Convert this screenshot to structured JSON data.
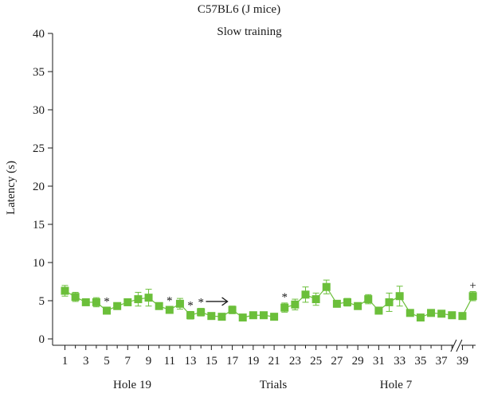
{
  "chart_data": {
    "type": "line",
    "title": "C57BL6 (J mice)",
    "subtitle": "Slow training",
    "ylabel": "Latency (s)",
    "xlabel": "Trials",
    "ylim": [
      0,
      40
    ],
    "yticks": [
      0,
      5,
      10,
      15,
      20,
      25,
      30,
      35,
      40
    ],
    "xtick_labels": [
      "1",
      "3",
      "5",
      "7",
      "9",
      "11",
      "13",
      "15",
      "17",
      "19",
      "21",
      "23",
      "25",
      "27",
      "29",
      "31",
      "33",
      "35",
      "37",
      "39"
    ],
    "group_labels": [
      "Hole 19",
      "Hole 7"
    ],
    "axis_break_between": [
      38,
      39
    ],
    "marker_color": "#6bbf3a",
    "segments": [
      {
        "x": [
          1,
          2,
          3,
          4,
          5,
          6,
          7,
          8,
          9,
          10,
          11,
          12,
          13,
          14,
          15,
          16,
          17,
          18,
          19,
          20,
          21
        ],
        "y": [
          6.3,
          5.5,
          4.8,
          4.8,
          3.7,
          4.3,
          4.8,
          5.2,
          5.4,
          4.3,
          3.8,
          4.6,
          3.1,
          3.5,
          3.0,
          2.9,
          3.8,
          2.8,
          3.1,
          3.1,
          2.9
        ],
        "err": [
          0.7,
          0.6,
          0.3,
          0.6,
          0.4,
          0.3,
          0.4,
          0.9,
          1.1,
          0.4,
          0.4,
          0.7,
          0.5,
          0.5,
          0.2,
          0.2,
          0.5,
          0.3,
          0.2,
          0.2,
          0.2
        ]
      },
      {
        "x": [
          22,
          23,
          24,
          25,
          26,
          27,
          28,
          29,
          30,
          31,
          32,
          33,
          34,
          35,
          36,
          37,
          38
        ],
        "y": [
          4.1,
          4.5,
          5.8,
          5.2,
          6.8,
          4.6,
          4.8,
          4.3,
          5.2,
          3.7,
          4.8,
          5.6,
          3.4,
          2.8,
          3.4,
          3.3,
          3.1
        ],
        "err": [
          0.6,
          0.7,
          1.0,
          0.8,
          0.9,
          0.4,
          0.5,
          0.3,
          0.6,
          0.3,
          1.2,
          1.3,
          0.3,
          0.2,
          0.3,
          0.3,
          0.2
        ]
      },
      {
        "x": [
          39,
          40
        ],
        "y": [
          3.0,
          5.6
        ],
        "err": [
          0.2,
          0.6
        ]
      }
    ],
    "annotations": [
      {
        "x": 5,
        "label": "*"
      },
      {
        "x": 11,
        "label": "*"
      },
      {
        "x": 13,
        "label": "*"
      },
      {
        "x": 14,
        "label": "*"
      },
      {
        "x": 22,
        "label": "*"
      },
      {
        "x": 40,
        "label": "+"
      }
    ],
    "arrow_between": [
      16,
      17
    ]
  }
}
